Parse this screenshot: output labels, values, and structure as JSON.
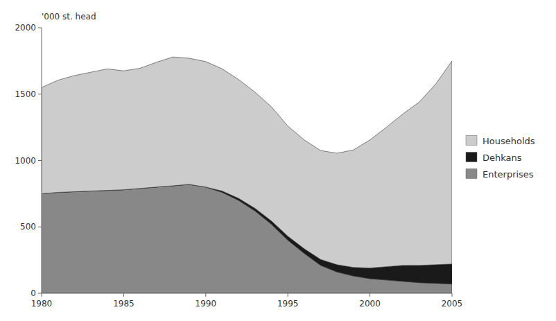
{
  "chart_data": {
    "type": "area",
    "stacked": true,
    "ylabel": "'000 st. head",
    "x": [
      1980,
      1981,
      1982,
      1983,
      1984,
      1985,
      1986,
      1987,
      1988,
      1989,
      1990,
      1991,
      1992,
      1993,
      1994,
      1995,
      1996,
      1997,
      1998,
      1999,
      2000,
      2001,
      2002,
      2003,
      2004,
      2005
    ],
    "series": [
      {
        "name": "Enterprises",
        "color": "#888888",
        "values": [
          750,
          760,
          765,
          770,
          775,
          780,
          790,
          800,
          810,
          820,
          800,
          760,
          700,
          620,
          520,
          400,
          300,
          210,
          160,
          130,
          110,
          100,
          90,
          80,
          75,
          70
        ]
      },
      {
        "name": "Dehkans",
        "color": "#1a1a1a",
        "values": [
          0,
          0,
          0,
          0,
          0,
          0,
          0,
          0,
          0,
          0,
          0,
          10,
          15,
          20,
          25,
          30,
          35,
          45,
          55,
          65,
          80,
          100,
          120,
          130,
          140,
          150
        ]
      },
      {
        "name": "Households",
        "color": "#cccccc",
        "values": [
          800,
          845,
          875,
          895,
          915,
          895,
          905,
          940,
          970,
          950,
          945,
          920,
          895,
          875,
          860,
          830,
          820,
          820,
          840,
          885,
          965,
          1050,
          1140,
          1230,
          1360,
          1530
        ]
      }
    ],
    "xlim": [
      1980,
      2005
    ],
    "xticks": [
      1980,
      1985,
      1990,
      1995,
      2000,
      2005
    ],
    "ylim": [
      0,
      2000
    ],
    "yticks": [
      0,
      500,
      1000,
      1500,
      2000
    ],
    "legend": "right"
  }
}
